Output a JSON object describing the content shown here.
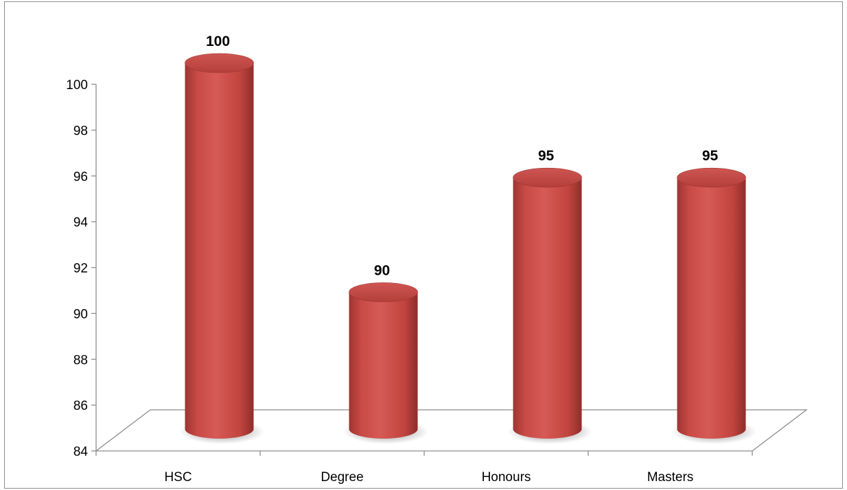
{
  "chart_data": {
    "type": "bar",
    "style": "3d-cylinder",
    "categories": [
      "HSC",
      "Degree",
      "Honours",
      "Masters"
    ],
    "values": [
      100,
      90,
      95,
      95
    ],
    "data_labels": [
      "100",
      "90",
      "95",
      "95"
    ],
    "title": "",
    "xlabel": "",
    "ylabel": "",
    "ylim": [
      84,
      100
    ],
    "yticks": [
      84,
      86,
      88,
      90,
      92,
      94,
      96,
      98,
      100
    ],
    "ytick_labels": [
      "84",
      "86",
      "88",
      "90",
      "92",
      "94",
      "96",
      "98",
      "100"
    ],
    "grid": false,
    "legend": "none",
    "bar_color": "#c0504d"
  }
}
